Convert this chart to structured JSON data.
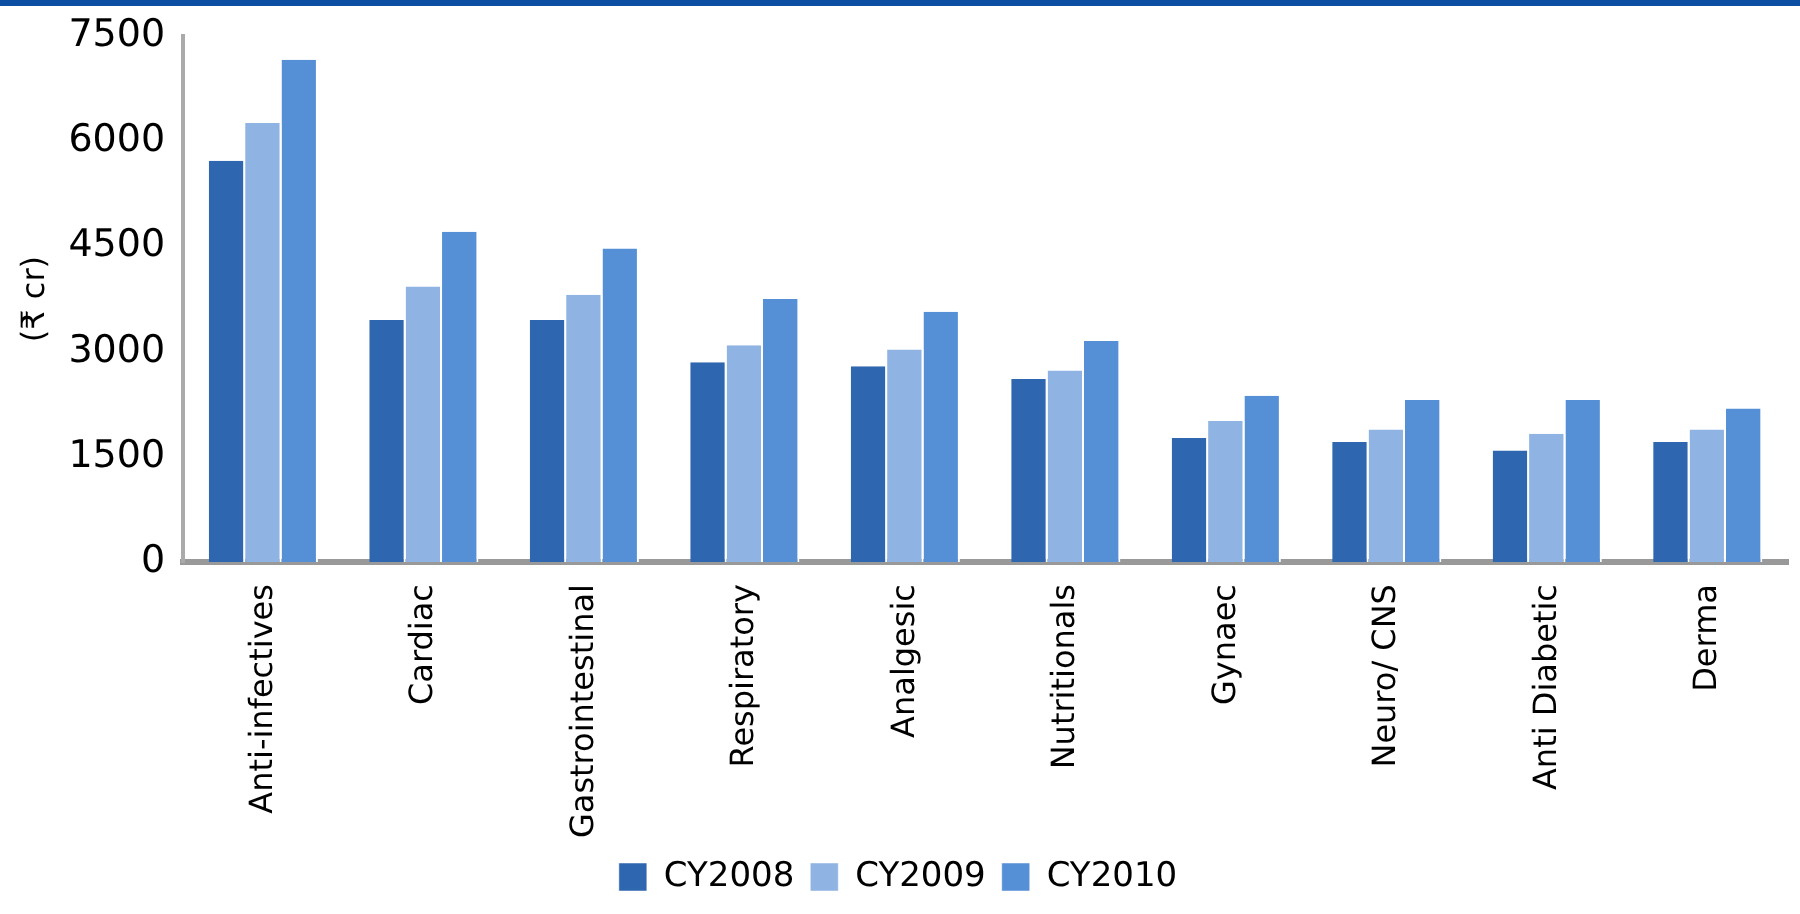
{
  "chart_data": {
    "type": "bar",
    "ylabel": "(₹ cr)",
    "categories": [
      "Anti-infectives",
      "Cardiac",
      "Gastrointestinal",
      "Respiratory",
      "Analgesic",
      "Nutritionals",
      "Gynaec",
      "Neuro/ CNS",
      "Anti Diabetic",
      "Derma"
    ],
    "series": [
      {
        "name": "CY2008",
        "color": "#2f66b0",
        "values": [
          5720,
          3450,
          3450,
          2850,
          2790,
          2610,
          1770,
          1710,
          1590,
          1710
        ]
      },
      {
        "name": "CY2009",
        "color": "#8fb3e3",
        "values": [
          6260,
          3930,
          3810,
          3090,
          3030,
          2730,
          2010,
          1890,
          1830,
          1890
        ]
      },
      {
        "name": "CY2010",
        "color": "#558fd6",
        "values": [
          7160,
          4710,
          4470,
          3750,
          3570,
          3150,
          2370,
          2310,
          2310,
          2190
        ]
      }
    ],
    "ylim": [
      0,
      7500
    ],
    "yticks": [
      0,
      1500,
      3000,
      4500,
      6000,
      7500
    ],
    "grid": false,
    "legend": "bottom"
  }
}
